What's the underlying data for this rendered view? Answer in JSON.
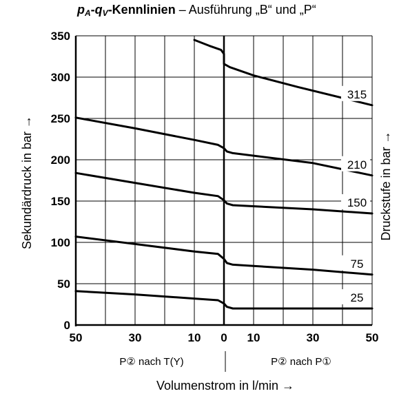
{
  "title": {
    "p": "p",
    "p_sub": "A",
    "dash": "-",
    "q": "q",
    "q_sub": "V",
    "bold_rest": "-Kennlinien",
    "normal_rest": " – Ausführung „B“ und „P“"
  },
  "chart_data": {
    "type": "line",
    "title": "pA-qV-Kennlinien – Ausführung „B“ und „P“",
    "xlabel": "Volumenstrom in l/min →",
    "ylabel": "Sekundärdruck in bar →",
    "ylabel_right": "Druckstufe in bar →",
    "x_ticks_left": [
      "50",
      "30",
      "10"
    ],
    "x_ticks_right": [
      "10",
      "30",
      "50"
    ],
    "x_tick_zero": "0",
    "y_ticks": [
      "0",
      "50",
      "100",
      "150",
      "200",
      "250",
      "300",
      "350"
    ],
    "xlim": [
      -50,
      50
    ],
    "ylim": [
      0,
      350
    ],
    "x_direction_note": "negative x = P② nach T(Y), positive x = P② nach P①",
    "region_labels": {
      "left": "P② nach T(Y)",
      "right": "P② nach P①"
    },
    "grid": true,
    "series": [
      {
        "name": "315",
        "points": [
          [
            -10,
            345
          ],
          [
            -5,
            338
          ],
          [
            -1,
            333
          ],
          [
            0,
            328
          ],
          [
            0,
            316
          ],
          [
            2,
            312
          ],
          [
            10,
            302
          ],
          [
            25,
            288
          ],
          [
            50,
            266
          ]
        ]
      },
      {
        "name": "210",
        "points": [
          [
            -50,
            251
          ],
          [
            -30,
            238
          ],
          [
            -10,
            224
          ],
          [
            -2,
            218
          ],
          [
            0,
            214
          ],
          [
            1,
            210
          ],
          [
            3,
            208
          ],
          [
            30,
            196
          ],
          [
            50,
            181
          ]
        ]
      },
      {
        "name": "150",
        "points": [
          [
            -50,
            184
          ],
          [
            -30,
            172
          ],
          [
            -10,
            160
          ],
          [
            -2,
            156
          ],
          [
            0,
            151
          ],
          [
            1,
            147
          ],
          [
            3,
            145
          ],
          [
            30,
            140
          ],
          [
            50,
            135
          ]
        ]
      },
      {
        "name": "75",
        "points": [
          [
            -50,
            107
          ],
          [
            -30,
            98
          ],
          [
            -10,
            89
          ],
          [
            -2,
            86
          ],
          [
            0,
            80
          ],
          [
            1,
            75
          ],
          [
            3,
            73
          ],
          [
            30,
            67
          ],
          [
            50,
            61
          ]
        ]
      },
      {
        "name": "25",
        "points": [
          [
            -50,
            41
          ],
          [
            -30,
            37
          ],
          [
            -10,
            32
          ],
          [
            -2,
            30
          ],
          [
            0,
            26
          ],
          [
            1,
            22
          ],
          [
            3,
            20
          ],
          [
            30,
            20
          ],
          [
            50,
            20
          ]
        ]
      }
    ]
  }
}
